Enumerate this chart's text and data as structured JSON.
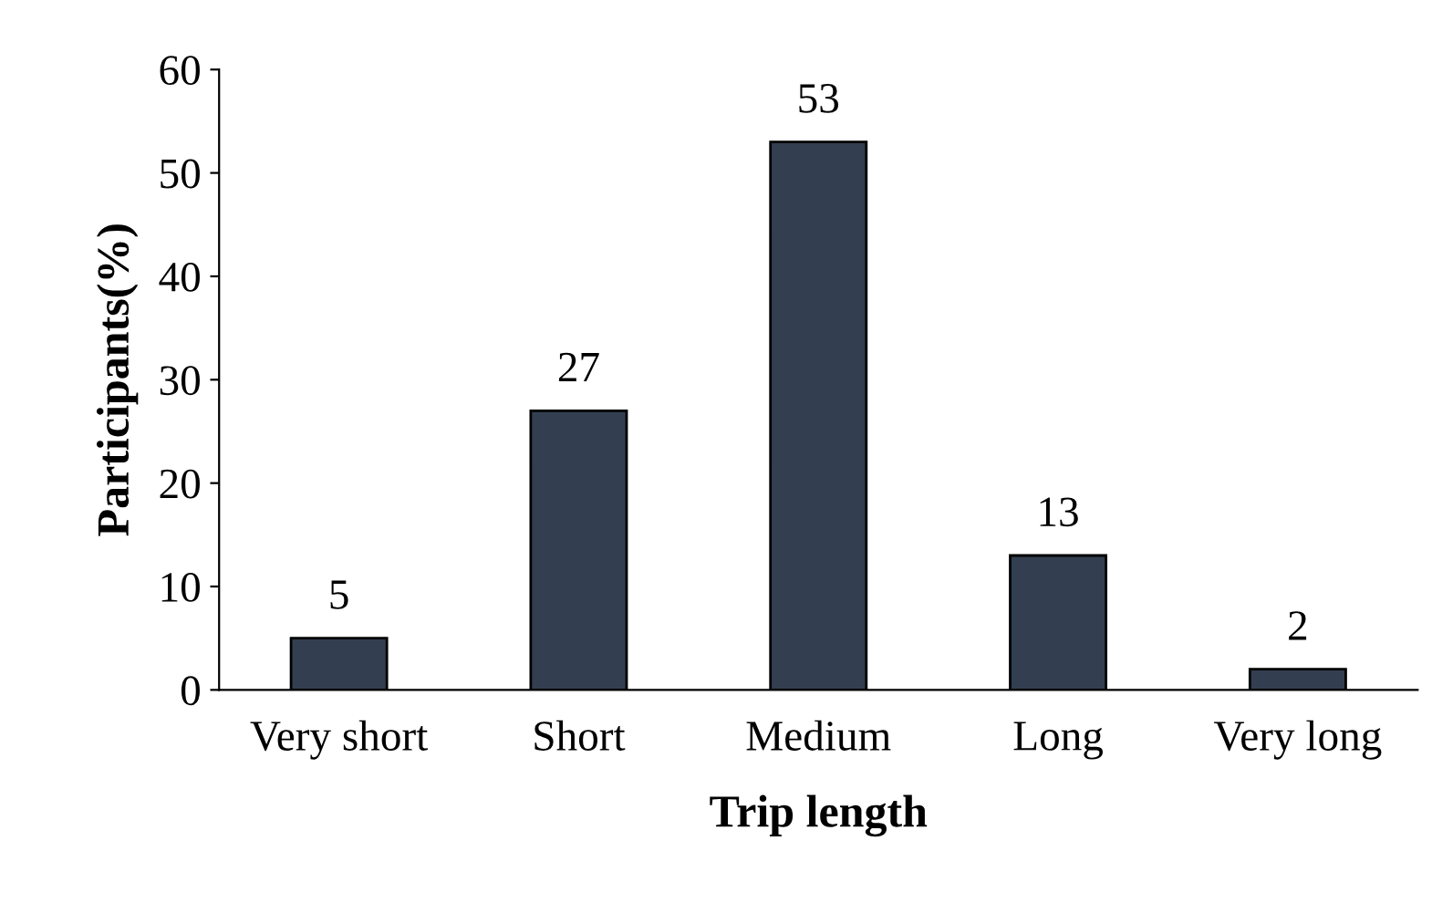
{
  "chart_data": {
    "type": "bar",
    "xlabel": "Trip length",
    "ylabel": "Participants(%)",
    "categories": [
      "Very short",
      "Short",
      "Medium",
      "Long",
      "Very long"
    ],
    "values": [
      5,
      27,
      53,
      13,
      2
    ],
    "color": "#333f50",
    "ylim": [
      0,
      60
    ],
    "yticks": [
      0,
      10,
      20,
      30,
      40,
      50,
      60
    ],
    "grid": false,
    "legend": false,
    "data_labels": true
  }
}
